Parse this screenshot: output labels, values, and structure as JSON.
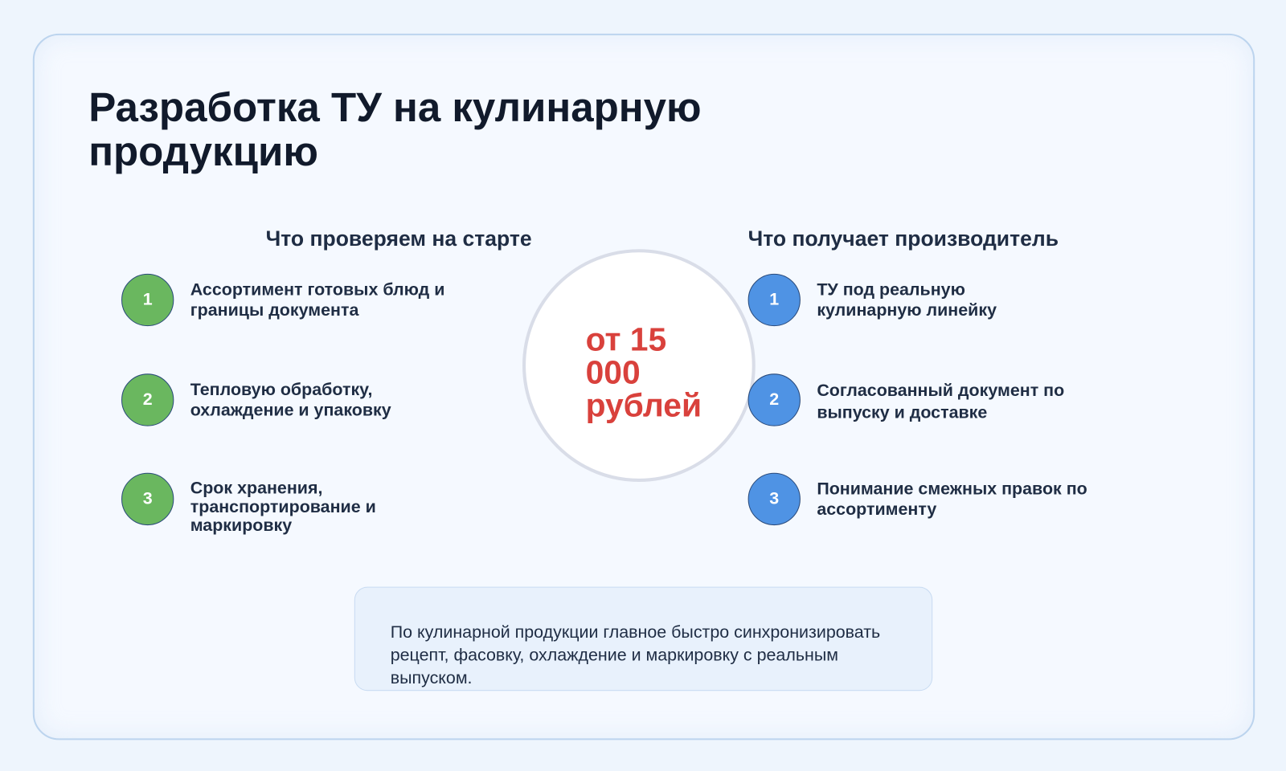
{
  "title": "Разработка ТУ на кулинарную продукцию",
  "left": {
    "heading": "Что проверяем на старте",
    "items": [
      {
        "num": "1",
        "text": "Ассортимент готовых блюд и границы документа"
      },
      {
        "num": "2",
        "text": "Тепловую обработку, охлаждение и упаковку"
      },
      {
        "num": "3",
        "text": "Срок хранения, транспортирование и маркировку"
      }
    ]
  },
  "right": {
    "heading": "Что получает производитель",
    "items": [
      {
        "num": "1",
        "text": "ТУ под реальную кулинарную линейку"
      },
      {
        "num": "2",
        "text": "Согласованный документ по выпуску и доставке"
      },
      {
        "num": "3",
        "text": "Понимание смежных правок по ассортименту"
      }
    ]
  },
  "price": "от 15 000 рублей",
  "note": "По кулинарной продукции главное быстро синхронизировать рецепт, фасовку, охлаждение и маркировку с реальным выпуском.",
  "colors": {
    "accent_green": "#6ab75f",
    "accent_blue": "#4f93e4",
    "price_red": "#d9413c"
  }
}
